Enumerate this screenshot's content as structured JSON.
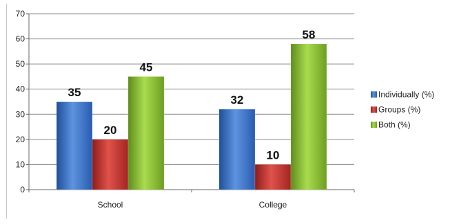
{
  "chart_data": {
    "type": "bar",
    "title": "",
    "xlabel": "",
    "ylabel": "",
    "categories": [
      "School",
      "College"
    ],
    "series": [
      {
        "name": "Individually (%)",
        "values": [
          35,
          32
        ],
        "color": "#3a72c9"
      },
      {
        "name": "Groups (%)",
        "values": [
          20,
          10
        ],
        "color": "#c8302c"
      },
      {
        "name": "Both (%)",
        "values": [
          45,
          58
        ],
        "color": "#8fc33a"
      }
    ],
    "ylim": [
      0,
      70
    ],
    "yticks": [
      "0",
      "10",
      "20",
      "30",
      "40",
      "50",
      "60",
      "70"
    ],
    "grid": true,
    "legend_position": "right",
    "data_labels": true
  }
}
